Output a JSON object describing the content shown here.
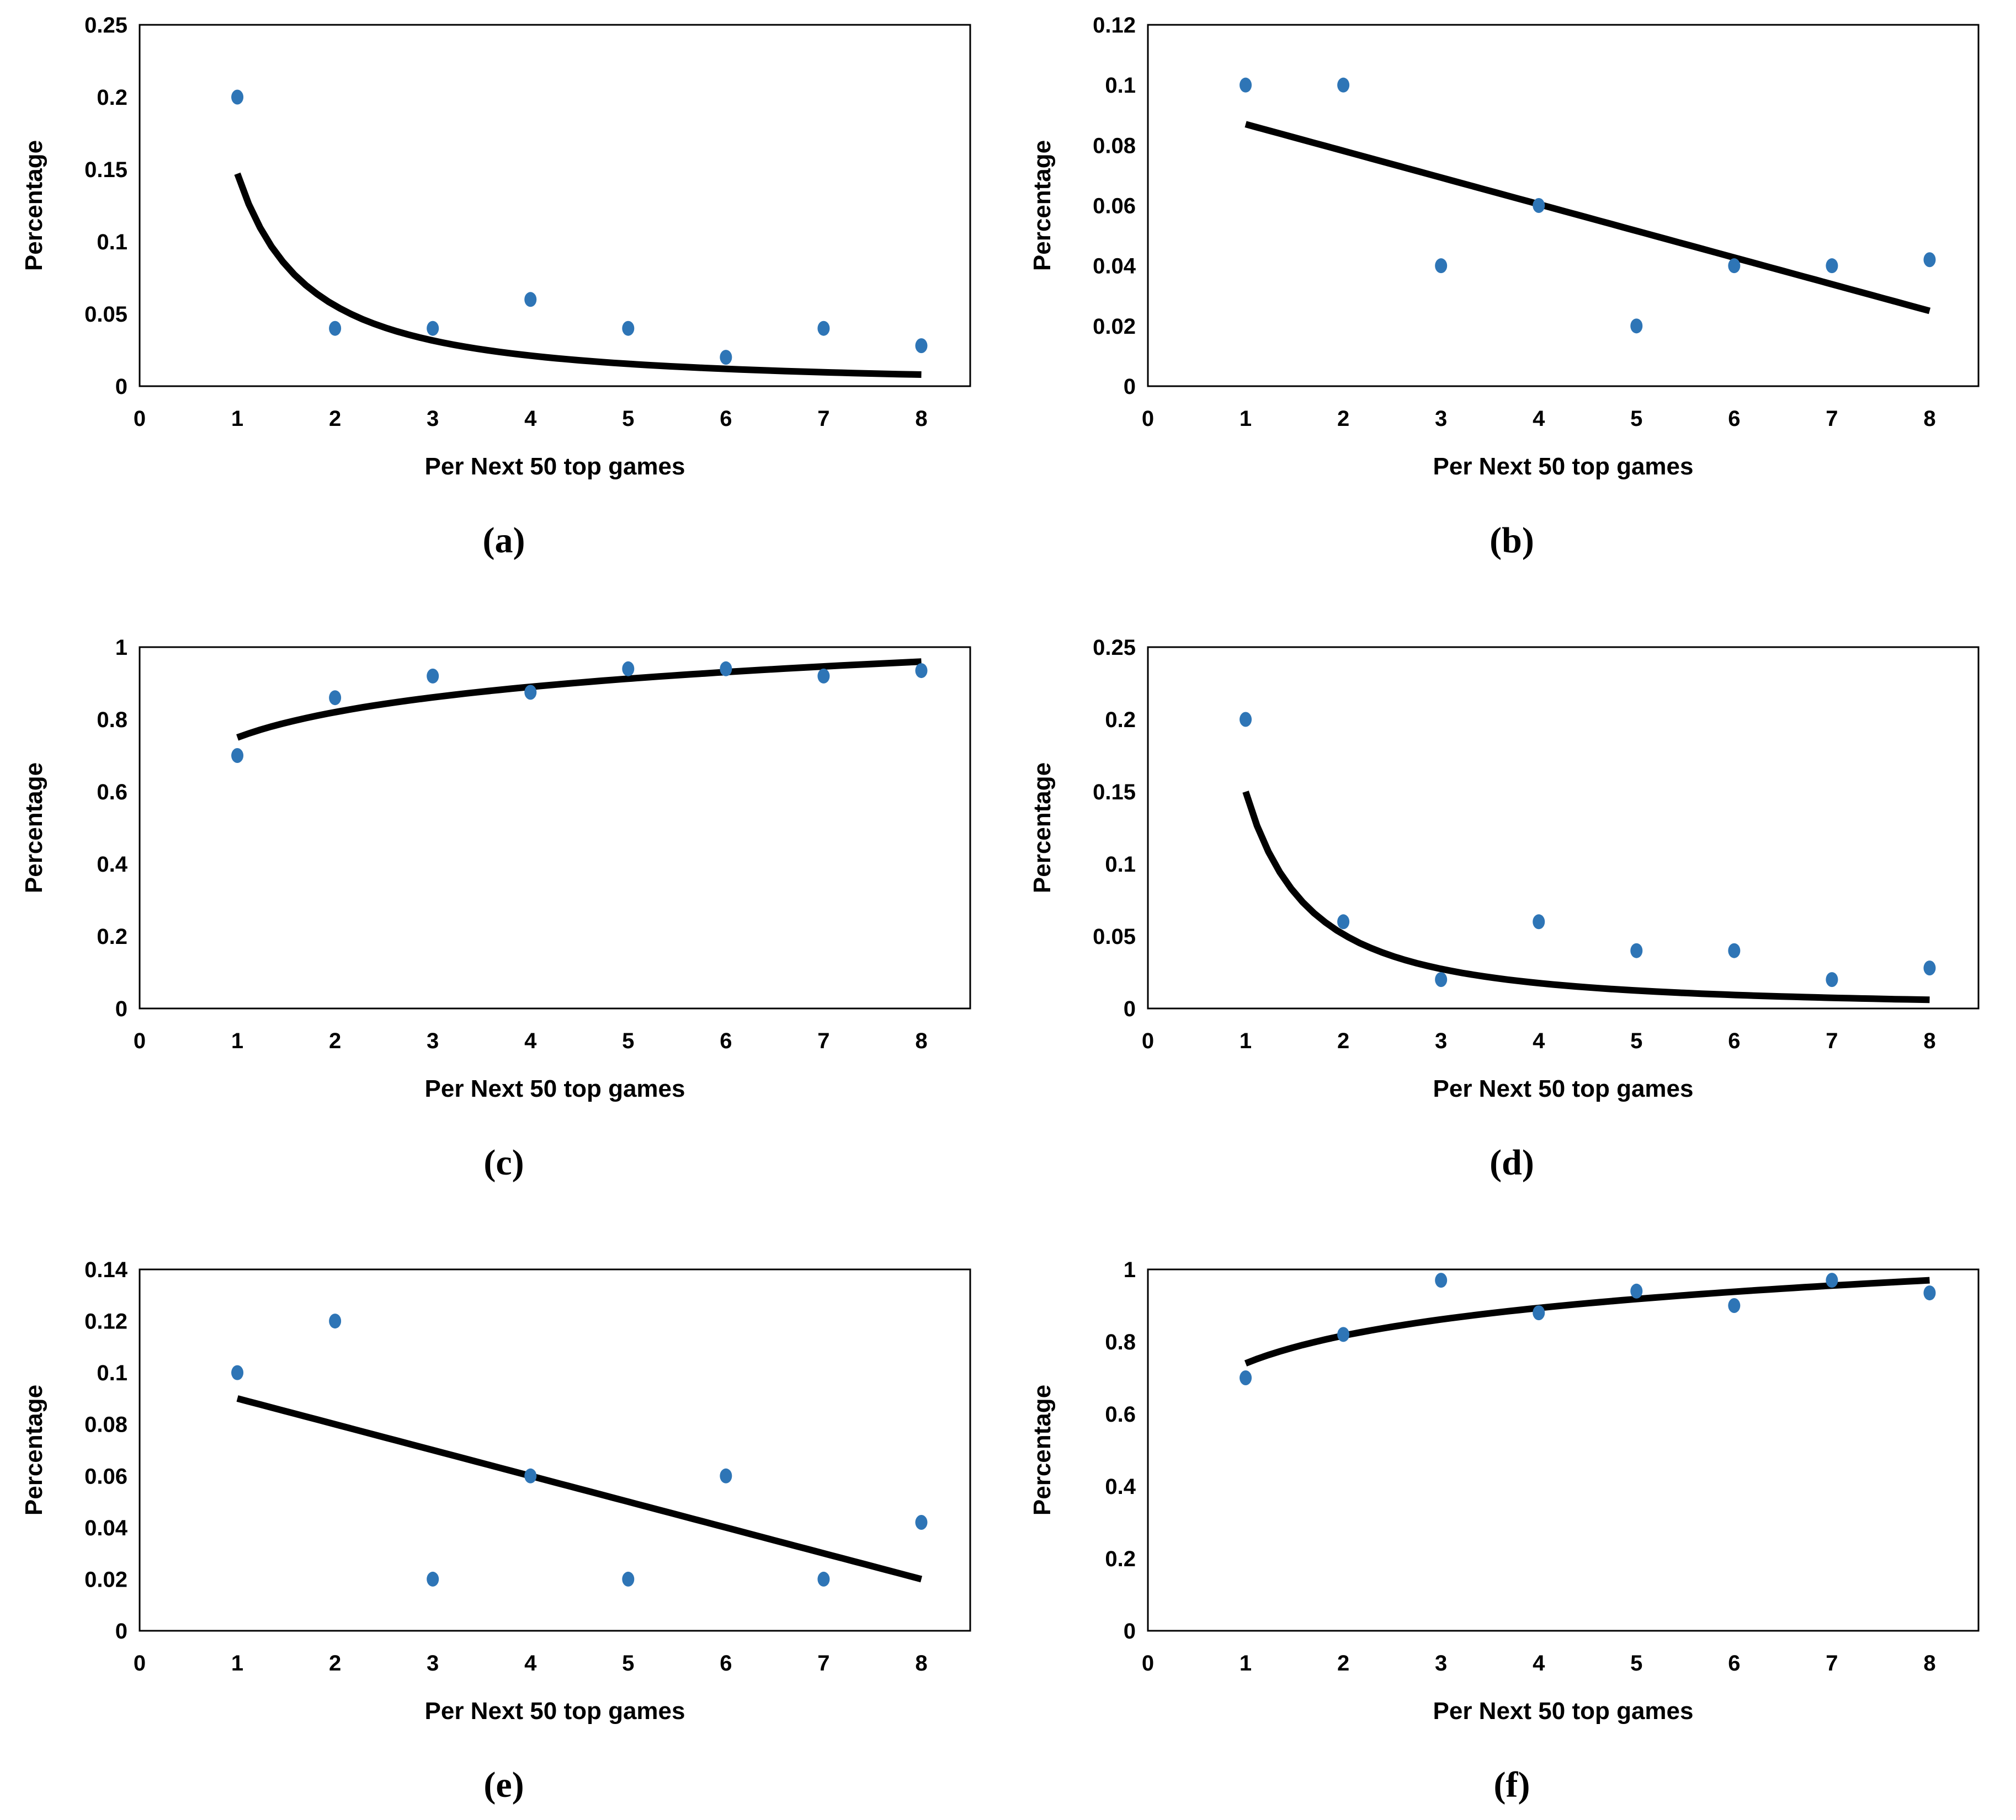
{
  "figure": {
    "x_axis_title": "Per Next 50 top games",
    "y_axis_title": "Percentage",
    "dot_color": "#2E75B6",
    "trend_color": "#000000",
    "axis_color": "#000000"
  },
  "chart_data": [
    {
      "id": "a",
      "caption": "(a)",
      "type": "scatter",
      "title": "",
      "xlabel": "Per Next 50 top games",
      "ylabel": "Percentage",
      "x": [
        1,
        2,
        3,
        4,
        5,
        6,
        7,
        8
      ],
      "values": [
        0.2,
        0.04,
        0.04,
        0.06,
        0.04,
        0.02,
        0.04,
        0.028
      ],
      "xlim": [
        0,
        8.5
      ],
      "ylim": [
        0,
        0.25
      ],
      "xticks": [
        0,
        1,
        2,
        3,
        4,
        5,
        6,
        7,
        8
      ],
      "xtick_labels": [
        "0",
        "1",
        "2",
        "3",
        "4",
        "5",
        "6",
        "7",
        "8"
      ],
      "yticks": [
        0,
        0.05,
        0.1,
        0.15,
        0.2,
        0.25
      ],
      "ytick_labels": [
        "0",
        "0.05",
        "0.1",
        "0.15",
        "0.2",
        "0.25"
      ],
      "grid": false,
      "legend": false,
      "trend": {
        "shape": "power",
        "x_start": 1,
        "y_start": 0.147,
        "x_end": 8,
        "y_end": 0.008
      }
    },
    {
      "id": "b",
      "caption": "(b)",
      "type": "scatter",
      "title": "",
      "xlabel": "Per Next 50 top games",
      "ylabel": "Percentage",
      "x": [
        1,
        2,
        3,
        4,
        5,
        6,
        7,
        8
      ],
      "values": [
        0.1,
        0.1,
        0.04,
        0.06,
        0.02,
        0.04,
        0.04,
        0.042
      ],
      "xlim": [
        0,
        8.5
      ],
      "ylim": [
        0,
        0.12
      ],
      "xticks": [
        0,
        1,
        2,
        3,
        4,
        5,
        6,
        7,
        8
      ],
      "xtick_labels": [
        "0",
        "1",
        "2",
        "3",
        "4",
        "5",
        "6",
        "7",
        "8"
      ],
      "yticks": [
        0,
        0.02,
        0.04,
        0.06,
        0.08,
        0.1,
        0.12
      ],
      "ytick_labels": [
        "0",
        "0.02",
        "0.04",
        "0.06",
        "0.08",
        "0.1",
        "0.12"
      ],
      "grid": false,
      "legend": false,
      "trend": {
        "shape": "linear",
        "x_start": 1,
        "y_start": 0.087,
        "x_end": 8,
        "y_end": 0.025
      }
    },
    {
      "id": "c",
      "caption": "(c)",
      "type": "scatter",
      "title": "",
      "xlabel": "Per Next 50 top games",
      "ylabel": "Percentage",
      "x": [
        1,
        2,
        3,
        4,
        5,
        6,
        7,
        8
      ],
      "values": [
        0.7,
        0.86,
        0.92,
        0.875,
        0.94,
        0.94,
        0.92,
        0.935
      ],
      "xlim": [
        0,
        8.5
      ],
      "ylim": [
        0,
        1
      ],
      "xticks": [
        0,
        1,
        2,
        3,
        4,
        5,
        6,
        7,
        8
      ],
      "xtick_labels": [
        "0",
        "1",
        "2",
        "3",
        "4",
        "5",
        "6",
        "7",
        "8"
      ],
      "yticks": [
        0,
        0.2,
        0.4,
        0.6,
        0.8,
        1
      ],
      "ytick_labels": [
        "0",
        "0.2",
        "0.4",
        "0.6",
        "0.8",
        "1"
      ],
      "grid": false,
      "legend": false,
      "trend": {
        "shape": "log",
        "x_start": 1,
        "y_start": 0.75,
        "x_end": 8,
        "y_end": 0.96
      }
    },
    {
      "id": "d",
      "caption": "(d)",
      "type": "scatter",
      "title": "",
      "xlabel": "Per Next 50 top games",
      "ylabel": "Percentage",
      "x": [
        1,
        2,
        3,
        4,
        5,
        6,
        7,
        8
      ],
      "values": [
        0.2,
        0.06,
        0.02,
        0.06,
        0.04,
        0.04,
        0.02,
        0.028
      ],
      "xlim": [
        0,
        8.5
      ],
      "ylim": [
        0,
        0.25
      ],
      "xticks": [
        0,
        1,
        2,
        3,
        4,
        5,
        6,
        7,
        8
      ],
      "xtick_labels": [
        "0",
        "1",
        "2",
        "3",
        "4",
        "5",
        "6",
        "7",
        "8"
      ],
      "yticks": [
        0,
        0.05,
        0.1,
        0.15,
        0.2,
        0.25
      ],
      "ytick_labels": [
        "0",
        "0.05",
        "0.1",
        "0.15",
        "0.2",
        "0.25"
      ],
      "grid": false,
      "legend": false,
      "trend": {
        "shape": "power",
        "x_start": 1,
        "y_start": 0.15,
        "x_end": 8,
        "y_end": 0.006
      }
    },
    {
      "id": "e",
      "caption": "(e)",
      "type": "scatter",
      "title": "",
      "xlabel": "Per Next 50 top games",
      "ylabel": "Percentage",
      "x": [
        1,
        2,
        3,
        4,
        5,
        6,
        7,
        8
      ],
      "values": [
        0.1,
        0.12,
        0.02,
        0.06,
        0.02,
        0.06,
        0.02,
        0.042
      ],
      "xlim": [
        0,
        8.5
      ],
      "ylim": [
        0,
        0.14
      ],
      "xticks": [
        0,
        1,
        2,
        3,
        4,
        5,
        6,
        7,
        8
      ],
      "xtick_labels": [
        "0",
        "1",
        "2",
        "3",
        "4",
        "5",
        "6",
        "7",
        "8"
      ],
      "yticks": [
        0,
        0.02,
        0.04,
        0.06,
        0.08,
        0.1,
        0.12,
        0.14
      ],
      "ytick_labels": [
        "0",
        "0.02",
        "0.04",
        "0.06",
        "0.08",
        "0.1",
        "0.12",
        "0.14"
      ],
      "grid": false,
      "legend": false,
      "trend": {
        "shape": "linear",
        "x_start": 1,
        "y_start": 0.09,
        "x_end": 8,
        "y_end": 0.02
      }
    },
    {
      "id": "f",
      "caption": "(f)",
      "type": "scatter",
      "title": "",
      "xlabel": "Per Next 50 top games",
      "ylabel": "Percentage",
      "x": [
        1,
        2,
        3,
        4,
        5,
        6,
        7,
        8
      ],
      "values": [
        0.7,
        0.82,
        0.97,
        0.88,
        0.94,
        0.9,
        0.97,
        0.935
      ],
      "xlim": [
        0,
        8.5
      ],
      "ylim": [
        0,
        1
      ],
      "xticks": [
        0,
        1,
        2,
        3,
        4,
        5,
        6,
        7,
        8
      ],
      "xtick_labels": [
        "0",
        "1",
        "2",
        "3",
        "4",
        "5",
        "6",
        "7",
        "8"
      ],
      "yticks": [
        0,
        0.2,
        0.4,
        0.6,
        0.8,
        1
      ],
      "ytick_labels": [
        "0",
        "0.2",
        "0.4",
        "0.6",
        "0.8",
        "1"
      ],
      "grid": false,
      "legend": false,
      "trend": {
        "shape": "log",
        "x_start": 1,
        "y_start": 0.74,
        "x_end": 8,
        "y_end": 0.97
      }
    }
  ]
}
